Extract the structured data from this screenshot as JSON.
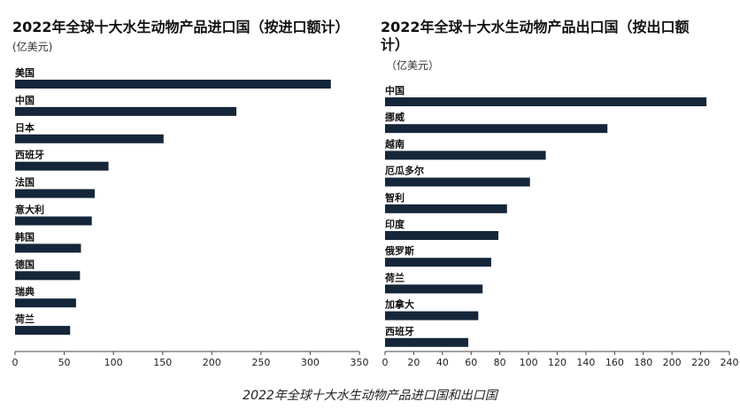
{
  "caption": "2022年全球十大水生动物产品进口国和出口国",
  "chart_data": [
    {
      "type": "bar",
      "orientation": "horizontal",
      "title_line1": "2022年全球十大水生动物产品进口国（按进口额计）",
      "title_line2": "",
      "subtitle": "(亿美元)",
      "categories": [
        "美国",
        "中国",
        "日本",
        "西班牙",
        "法国",
        "意大利",
        "韩国",
        "德国",
        "瑞典",
        "荷兰"
      ],
      "values": [
        321,
        225,
        151,
        95,
        81,
        78,
        67,
        66,
        62,
        56
      ],
      "xlim": [
        0,
        350
      ],
      "xticks": [
        0,
        50,
        100,
        150,
        200,
        250,
        300,
        350
      ],
      "bar_color": "#15263a",
      "grid": false
    },
    {
      "type": "bar",
      "orientation": "horizontal",
      "title_line1": "2022年全球十大水生动物产品出口国（按出口额",
      "title_line2": "计）",
      "subtitle": "（亿美元）",
      "categories": [
        "中国",
        "挪威",
        "越南",
        "厄瓜多尔",
        "智利",
        "印度",
        "俄罗斯",
        "荷兰",
        "加拿大",
        "西班牙"
      ],
      "values": [
        224,
        155,
        112,
        101,
        85,
        79,
        74,
        68,
        65,
        58
      ],
      "xlim": [
        0,
        240
      ],
      "xticks": [
        0,
        20,
        40,
        60,
        80,
        100,
        120,
        140,
        160,
        180,
        200,
        220,
        240
      ],
      "bar_color": "#15263a",
      "grid": false
    }
  ]
}
